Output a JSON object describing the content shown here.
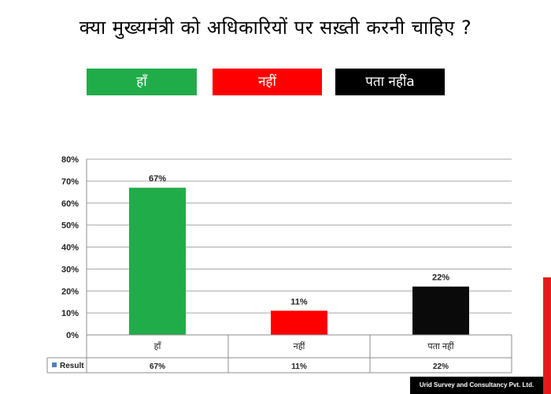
{
  "slide": {
    "title": "क्या मुख्यमंत्री को अधिकारियों पर सख़्ती करनी चाहिए ?",
    "options": [
      {
        "label": "हाँ",
        "color": "#21ac4a"
      },
      {
        "label": "नहीं",
        "color": "#ff0000"
      },
      {
        "label": "पता नहींa",
        "color": "#000000"
      }
    ],
    "footer": "Urid Survey and Consultancy Pvt. Ltd."
  },
  "chart_data": {
    "type": "bar",
    "categories": [
      "हाँ",
      "नहीं",
      "पता नहीं"
    ],
    "series": [
      {
        "name": "Result",
        "values": [
          67,
          11,
          22
        ],
        "colors": [
          "#21ac4a",
          "#ff0000",
          "#0a0a0a"
        ]
      }
    ],
    "data_labels": [
      "67%",
      "11%",
      "22%"
    ],
    "ylim": [
      0,
      80
    ],
    "yticks": [
      "0%",
      "10%",
      "20%",
      "30%",
      "40%",
      "50%",
      "60%",
      "70%",
      "80%"
    ],
    "grid": true,
    "legend": "data-table",
    "legend_marker_color": "#4f81bd",
    "table_values": [
      "67%",
      "11%",
      "22%"
    ]
  }
}
